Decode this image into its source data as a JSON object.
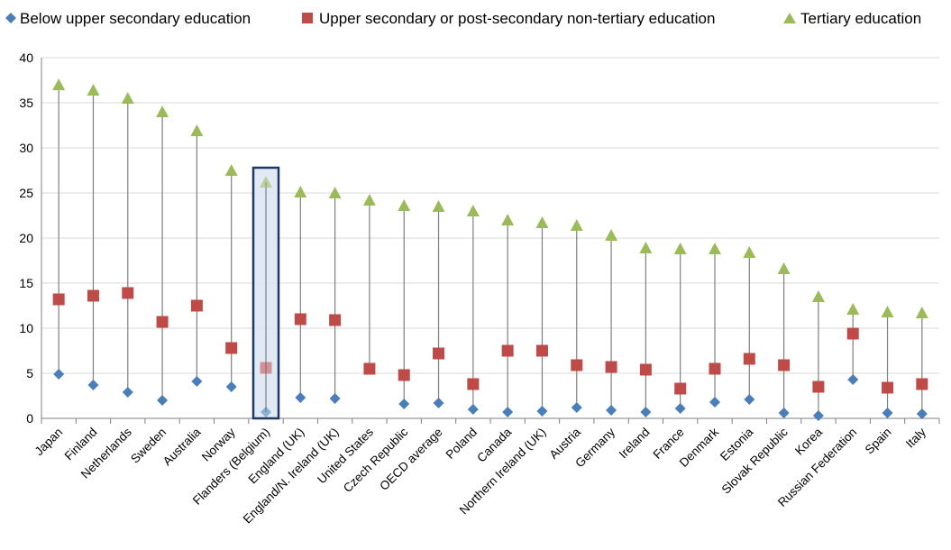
{
  "chart_data": {
    "type": "scatter",
    "subtype": "hi-lo range plot",
    "title": "",
    "xlabel": "",
    "ylabel": "",
    "ylim": [
      0,
      40
    ],
    "yticks": [
      0,
      5,
      10,
      15,
      20,
      25,
      30,
      35,
      40
    ],
    "grid": "horizontal",
    "legend_position": "top",
    "highlight_category": "Flanders (Belgium)",
    "categories": [
      "Japan",
      "Finland",
      "Netherlands",
      "Sweden",
      "Australia",
      "Norway",
      "Flanders (Belgium)",
      "England (UK)",
      "England/N. Ireland (UK)",
      "United States",
      "Czech Republic",
      "OECD average",
      "Poland",
      "Canada",
      "Northern Ireland (UK)",
      "Austria",
      "Germany",
      "Ireland",
      "France",
      "Denmark",
      "Estonia",
      "Slovak Republic",
      "Korea",
      "Russian Federation",
      "Spain",
      "Italy"
    ],
    "series": [
      {
        "name": "Below upper secondary education",
        "marker": "diamond",
        "color": "#4a7ebb",
        "values": [
          4.9,
          3.7,
          2.9,
          2.0,
          4.1,
          3.5,
          0.7,
          2.3,
          2.2,
          null,
          1.6,
          1.7,
          1.0,
          0.7,
          0.8,
          1.2,
          0.9,
          0.7,
          1.1,
          1.8,
          2.1,
          0.6,
          0.3,
          4.3,
          0.6,
          0.5
        ]
      },
      {
        "name": "Upper secondary or post-secondary non-tertiary education",
        "marker": "square",
        "color": "#be4b48",
        "values": [
          13.2,
          13.6,
          13.9,
          10.7,
          12.5,
          7.8,
          5.6,
          11.0,
          10.9,
          5.5,
          4.8,
          7.2,
          3.8,
          7.5,
          7.5,
          5.9,
          5.7,
          5.4,
          3.3,
          5.5,
          6.6,
          5.9,
          3.5,
          9.4,
          3.4,
          3.8
        ]
      },
      {
        "name": "Tertiary education",
        "marker": "triangle",
        "color": "#9bbb59",
        "values": [
          37.0,
          36.4,
          35.5,
          34.0,
          31.9,
          27.5,
          26.2,
          25.1,
          25.0,
          24.2,
          23.6,
          23.5,
          23.0,
          22.0,
          21.7,
          21.4,
          20.3,
          18.9,
          18.8,
          18.8,
          18.4,
          16.6,
          13.5,
          12.1,
          11.8,
          11.7
        ]
      }
    ]
  }
}
